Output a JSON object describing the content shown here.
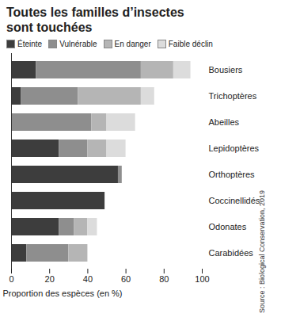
{
  "chart_data": {
    "type": "bar",
    "orientation": "horizontal",
    "stacked": true,
    "title": "Toutes les familles d’insectes sont touchées",
    "source": "Source : Biological Conservation, 2019",
    "x_label": "Proportion des espèces (en %)",
    "categories": [
      "Bousiers",
      "Trichoptères",
      "Abeilles",
      "Lepidoptères",
      "Orthoptères",
      "Coccinellidés",
      "Odonates",
      "Carabidées"
    ],
    "series": [
      {
        "name": "Éteinte",
        "color": "#3d3d3d",
        "values": [
          13,
          5,
          0,
          25,
          56,
          49,
          25,
          8
        ]
      },
      {
        "name": "Vulnérable",
        "color": "#8e8e8e",
        "values": [
          55,
          30,
          42,
          15,
          2,
          0,
          8,
          22
        ]
      },
      {
        "name": "En danger",
        "color": "#b5b5b5",
        "values": [
          17,
          33,
          8,
          10,
          0,
          0,
          7,
          10
        ]
      },
      {
        "name": "Faible déclin",
        "color": "#dcdcdc",
        "values": [
          9,
          7,
          15,
          10,
          0,
          0,
          5,
          0
        ]
      }
    ],
    "xlim": [
      0,
      100
    ],
    "xticks": [
      0,
      20,
      40,
      60,
      80,
      100
    ],
    "grid": false,
    "legend": "top"
  }
}
